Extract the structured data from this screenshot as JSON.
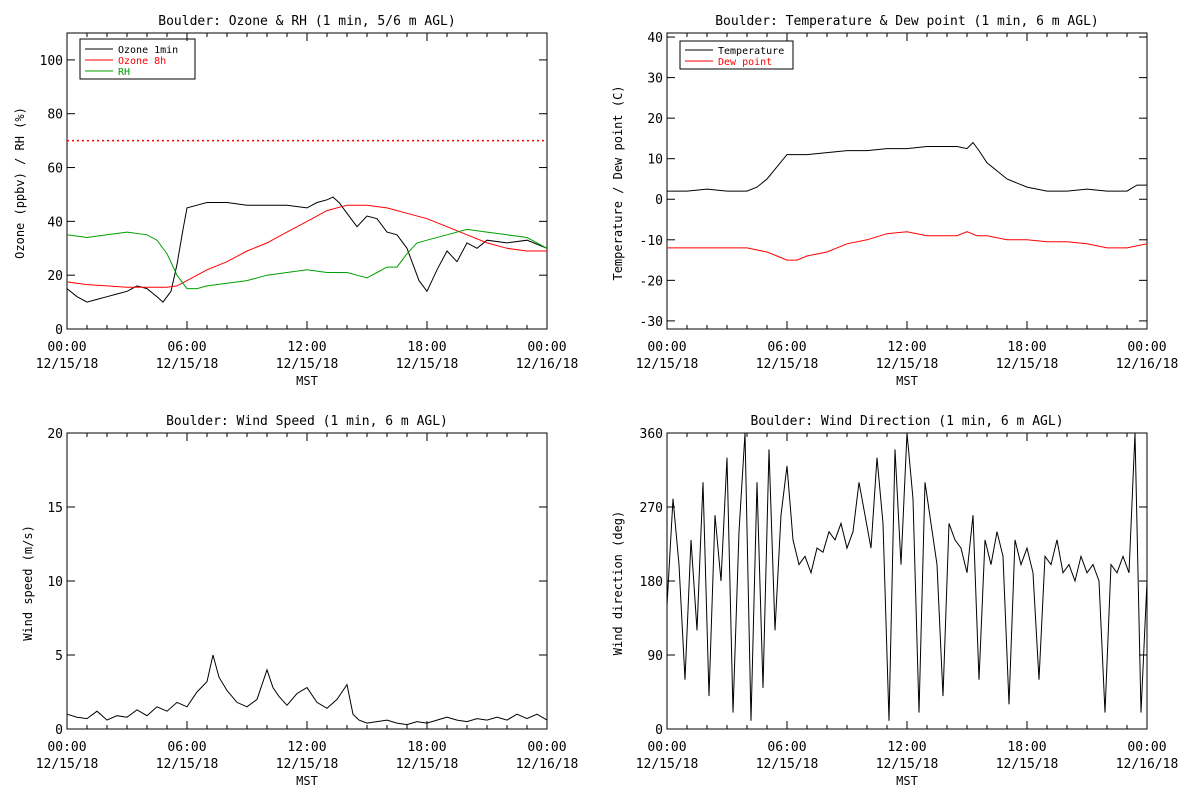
{
  "chart_data": [
    {
      "id": "ozone_rh",
      "type": "line",
      "title": "Boulder: Ozone & RH (1 min, 5/6 m AGL)",
      "xlabel": "MST",
      "ylabel": "Ozone (ppbv) / RH (%)",
      "xlim": [
        0,
        24
      ],
      "ylim": [
        0,
        110
      ],
      "yticks": [
        0,
        20,
        40,
        60,
        80,
        100
      ],
      "xticks": [
        0,
        6,
        12,
        18,
        24
      ],
      "xtick_labels": [
        [
          "00:00",
          "12/15/18"
        ],
        [
          "06:00",
          "12/15/18"
        ],
        [
          "12:00",
          "12/15/18"
        ],
        [
          "18:00",
          "12/15/18"
        ],
        [
          "00:00",
          "12/16/18"
        ]
      ],
      "grid": false,
      "legend": "top-left",
      "reference_lines": [
        {
          "y": 70,
          "color": "#ff0000",
          "style": "dotted"
        }
      ],
      "series": [
        {
          "name": "Ozone 1min",
          "color": "#000000",
          "x": [
            0,
            0.5,
            1,
            1.5,
            2,
            2.5,
            3,
            3.5,
            4,
            4.5,
            4.8,
            5.2,
            5.5,
            5.8,
            6,
            6.5,
            7,
            8,
            9,
            10,
            11,
            12,
            12.5,
            13,
            13.3,
            13.6,
            14,
            14.5,
            15,
            15.5,
            16,
            16.5,
            17,
            17.3,
            17.6,
            18,
            18.5,
            19,
            19.5,
            20,
            20.5,
            21,
            22,
            23,
            24
          ],
          "y": [
            15,
            12,
            10,
            11,
            12,
            13,
            14,
            16,
            15,
            12,
            10,
            14,
            24,
            37,
            45,
            46,
            47,
            47,
            46,
            46,
            46,
            45,
            47,
            48,
            49,
            47,
            43,
            38,
            42,
            41,
            36,
            35,
            30,
            24,
            18,
            14,
            22,
            29,
            25,
            32,
            30,
            33,
            32,
            33,
            30
          ]
        },
        {
          "name": "Ozone 8h",
          "color": "#ff0000",
          "x": [
            0,
            1,
            2,
            3,
            4,
            5,
            5.5,
            6,
            7,
            8,
            9,
            10,
            11,
            12,
            13,
            14,
            15,
            16,
            17,
            18,
            19,
            20,
            21,
            22,
            23,
            24
          ],
          "y": [
            17.5,
            16.5,
            16,
            15.5,
            15.5,
            15.5,
            16,
            18,
            22,
            25,
            29,
            32,
            36,
            40,
            44,
            46,
            46,
            45,
            43,
            41,
            38,
            35,
            32,
            30,
            29,
            29
          ]
        },
        {
          "name": "RH",
          "color": "#00a000",
          "x": [
            0,
            1,
            2,
            3,
            4,
            4.5,
            5,
            5.5,
            6,
            6.5,
            7,
            8,
            9,
            10,
            11,
            12,
            13,
            14,
            14.5,
            15,
            15.5,
            16,
            16.5,
            17,
            17.5,
            18,
            19,
            20,
            21,
            22,
            23,
            24
          ],
          "y": [
            35,
            34,
            35,
            36,
            35,
            33,
            28,
            20,
            15,
            15,
            16,
            17,
            18,
            20,
            21,
            22,
            21,
            21,
            20,
            19,
            21,
            23,
            23,
            28,
            32,
            33,
            35,
            37,
            36,
            35,
            34,
            30
          ]
        }
      ]
    },
    {
      "id": "temp_dew",
      "type": "line",
      "title": "Boulder: Temperature & Dew point (1 min, 6 m AGL)",
      "xlabel": "MST",
      "ylabel": "Temperature / Dew point (C)",
      "xlim": [
        0,
        24
      ],
      "ylim": [
        -32,
        41
      ],
      "yticks": [
        -30,
        -20,
        -10,
        0,
        10,
        20,
        30,
        40
      ],
      "xticks": [
        0,
        6,
        12,
        18,
        24
      ],
      "xtick_labels": [
        [
          "00:00",
          "12/15/18"
        ],
        [
          "06:00",
          "12/15/18"
        ],
        [
          "12:00",
          "12/15/18"
        ],
        [
          "18:00",
          "12/15/18"
        ],
        [
          "00:00",
          "12/16/18"
        ]
      ],
      "grid": false,
      "legend": "top-left",
      "series": [
        {
          "name": "Temperature",
          "color": "#000000",
          "x": [
            0,
            1,
            2,
            3,
            4,
            4.5,
            5,
            5.5,
            6,
            7,
            8,
            9,
            10,
            11,
            12,
            13,
            14,
            14.5,
            15,
            15.3,
            15.6,
            16,
            17,
            18,
            19,
            20,
            21,
            22,
            23,
            23.5,
            24
          ],
          "y": [
            2,
            2,
            2.5,
            2,
            2,
            3,
            5,
            8,
            11,
            11,
            11.5,
            12,
            12,
            12.5,
            12.5,
            13,
            13,
            13,
            12.5,
            14,
            12,
            9,
            5,
            3,
            2,
            2,
            2.5,
            2,
            2,
            3.5,
            3.5
          ]
        },
        {
          "name": "Dew point",
          "color": "#ff0000",
          "x": [
            0,
            1,
            2,
            3,
            4,
            5,
            5.5,
            6,
            6.5,
            7,
            8,
            9,
            10,
            11,
            12,
            13,
            14,
            14.5,
            15,
            15.5,
            16,
            17,
            18,
            19,
            20,
            21,
            22,
            23,
            24
          ],
          "y": [
            -12,
            -12,
            -12,
            -12,
            -12,
            -13,
            -14,
            -15,
            -15,
            -14,
            -13,
            -11,
            -10,
            -8.5,
            -8,
            -9,
            -9,
            -9,
            -8,
            -9,
            -9,
            -10,
            -10,
            -10.5,
            -10.5,
            -11,
            -12,
            -12,
            -11
          ]
        }
      ]
    },
    {
      "id": "wind_speed",
      "type": "line",
      "title": "Boulder: Wind Speed (1 min, 6 m AGL)",
      "xlabel": "MST",
      "ylabel": "Wind speed (m/s)",
      "xlim": [
        0,
        24
      ],
      "ylim": [
        0,
        20
      ],
      "yticks": [
        0,
        5,
        10,
        15,
        20
      ],
      "xticks": [
        0,
        6,
        12,
        18,
        24
      ],
      "xtick_labels": [
        [
          "00:00",
          "12/15/18"
        ],
        [
          "06:00",
          "12/15/18"
        ],
        [
          "12:00",
          "12/15/18"
        ],
        [
          "18:00",
          "12/15/18"
        ],
        [
          "00:00",
          "12/16/18"
        ]
      ],
      "grid": false,
      "series": [
        {
          "color": "#000000",
          "x": [
            0,
            0.5,
            1,
            1.5,
            2,
            2.5,
            3,
            3.5,
            4,
            4.5,
            5,
            5.5,
            6,
            6.5,
            7,
            7.3,
            7.6,
            8,
            8.5,
            9,
            9.5,
            10,
            10.3,
            10.6,
            11,
            11.5,
            12,
            12.5,
            13,
            13.5,
            14,
            14.3,
            14.6,
            15,
            15.5,
            16,
            16.5,
            17,
            17.5,
            18,
            18.5,
            19,
            19.5,
            20,
            20.5,
            21,
            21.5,
            22,
            22.5,
            23,
            23.5,
            24
          ],
          "y": [
            1,
            0.8,
            0.7,
            1.2,
            0.6,
            0.9,
            0.8,
            1.3,
            0.9,
            1.5,
            1.2,
            1.8,
            1.5,
            2.5,
            3.2,
            5.0,
            3.5,
            2.6,
            1.8,
            1.5,
            2.0,
            4.0,
            2.8,
            2.2,
            1.6,
            2.4,
            2.8,
            1.8,
            1.4,
            2.0,
            3.0,
            1.0,
            0.6,
            0.4,
            0.5,
            0.6,
            0.4,
            0.3,
            0.5,
            0.4,
            0.6,
            0.8,
            0.6,
            0.5,
            0.7,
            0.6,
            0.8,
            0.6,
            1.0,
            0.7,
            1.0,
            0.6
          ]
        }
      ]
    },
    {
      "id": "wind_dir",
      "type": "line",
      "title": "Boulder: Wind Direction (1 min, 6 m AGL)",
      "xlabel": "MST",
      "ylabel": "Wind direction (deg)",
      "xlim": [
        0,
        24
      ],
      "ylim": [
        0,
        360
      ],
      "yticks": [
        0,
        90,
        180,
        270,
        360
      ],
      "xticks": [
        0,
        6,
        12,
        18,
        24
      ],
      "xtick_labels": [
        [
          "00:00",
          "12/15/18"
        ],
        [
          "06:00",
          "12/15/18"
        ],
        [
          "12:00",
          "12/15/18"
        ],
        [
          "18:00",
          "12/15/18"
        ],
        [
          "00:00",
          "12/16/18"
        ]
      ],
      "grid": false,
      "series": [
        {
          "color": "#000000",
          "x": [
            0,
            0.3,
            0.6,
            0.9,
            1.2,
            1.5,
            1.8,
            2.1,
            2.4,
            2.7,
            3.0,
            3.3,
            3.6,
            3.9,
            4.2,
            4.5,
            4.8,
            5.1,
            5.4,
            5.7,
            6.0,
            6.3,
            6.6,
            6.9,
            7.2,
            7.5,
            7.8,
            8.1,
            8.4,
            8.7,
            9.0,
            9.3,
            9.6,
            9.9,
            10.2,
            10.5,
            10.8,
            11.1,
            11.4,
            11.7,
            12.0,
            12.3,
            12.6,
            12.9,
            13.2,
            13.5,
            13.8,
            14.1,
            14.4,
            14.7,
            15.0,
            15.3,
            15.6,
            15.9,
            16.2,
            16.5,
            16.8,
            17.1,
            17.4,
            17.7,
            18.0,
            18.3,
            18.6,
            18.9,
            19.2,
            19.5,
            19.8,
            20.1,
            20.4,
            20.7,
            21.0,
            21.3,
            21.6,
            21.9,
            22.2,
            22.5,
            22.8,
            23.1,
            23.4,
            23.7,
            24.0
          ],
          "y": [
            150,
            280,
            200,
            60,
            230,
            120,
            300,
            40,
            260,
            180,
            330,
            20,
            240,
            360,
            10,
            300,
            50,
            340,
            120,
            260,
            320,
            230,
            200,
            210,
            190,
            220,
            215,
            240,
            230,
            250,
            220,
            240,
            300,
            260,
            220,
            330,
            250,
            10,
            340,
            200,
            360,
            280,
            20,
            300,
            250,
            200,
            40,
            250,
            230,
            220,
            190,
            260,
            60,
            230,
            200,
            240,
            210,
            30,
            230,
            200,
            220,
            190,
            60,
            210,
            200,
            230,
            190,
            200,
            180,
            210,
            190,
            200,
            180,
            20,
            200,
            190,
            210,
            190,
            360,
            20,
            180
          ]
        }
      ]
    }
  ]
}
